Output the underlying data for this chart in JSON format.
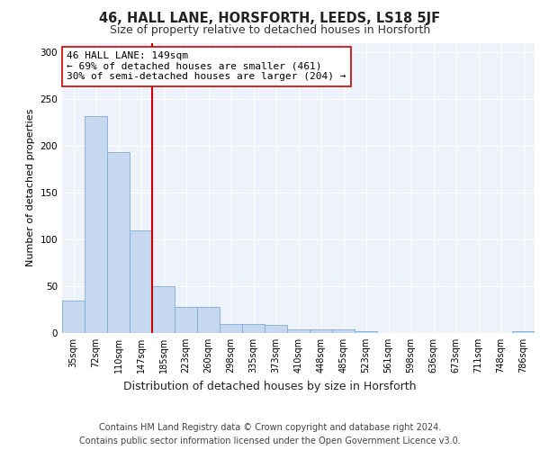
{
  "title": "46, HALL LANE, HORSFORTH, LEEDS, LS18 5JF",
  "subtitle": "Size of property relative to detached houses in Horsforth",
  "xlabel": "Distribution of detached houses by size in Horsforth",
  "ylabel": "Number of detached properties",
  "categories": [
    "35sqm",
    "72sqm",
    "110sqm",
    "147sqm",
    "185sqm",
    "223sqm",
    "260sqm",
    "298sqm",
    "335sqm",
    "373sqm",
    "410sqm",
    "448sqm",
    "485sqm",
    "523sqm",
    "561sqm",
    "598sqm",
    "636sqm",
    "673sqm",
    "711sqm",
    "748sqm",
    "786sqm"
  ],
  "values": [
    35,
    232,
    193,
    110,
    50,
    28,
    28,
    10,
    10,
    9,
    4,
    4,
    4,
    2,
    0,
    0,
    0,
    0,
    0,
    0,
    2
  ],
  "bar_color": "#c5d8f0",
  "bar_edge_color": "#7bafd4",
  "property_line_x": 3.5,
  "property_line_color": "#cc0000",
  "annotation_text": "46 HALL LANE: 149sqm\n← 69% of detached houses are smaller (461)\n30% of semi-detached houses are larger (204) →",
  "annotation_box_color": "#ffffff",
  "annotation_box_edge_color": "#cc0000",
  "ylim": [
    0,
    310
  ],
  "yticks": [
    0,
    50,
    100,
    150,
    200,
    250,
    300
  ],
  "background_color": "#eef2fa",
  "grid_color": "#ffffff",
  "footer_line1": "Contains HM Land Registry data © Crown copyright and database right 2024.",
  "footer_line2": "Contains public sector information licensed under the Open Government Licence v3.0.",
  "title_fontsize": 10.5,
  "subtitle_fontsize": 9,
  "annotation_fontsize": 8,
  "footer_fontsize": 7,
  "tick_fontsize": 7,
  "ylabel_fontsize": 8,
  "xlabel_fontsize": 9
}
